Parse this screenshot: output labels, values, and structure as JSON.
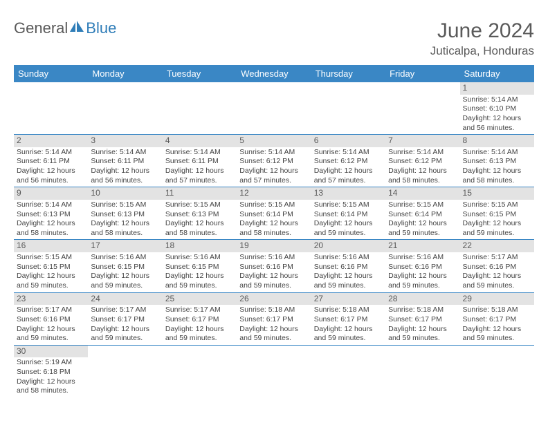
{
  "brand": {
    "part1": "General",
    "part2": "Blue"
  },
  "title": "June 2024",
  "location": "Juticalpa, Honduras",
  "colors": {
    "header_bg": "#3a87c5",
    "header_text": "#ffffff",
    "daynum_bg": "#e3e3e3",
    "row_border": "#3a87c5",
    "brand_gray": "#5a5a5a",
    "brand_blue": "#2f7db8"
  },
  "weekdays": [
    "Sunday",
    "Monday",
    "Tuesday",
    "Wednesday",
    "Thursday",
    "Friday",
    "Saturday"
  ],
  "days": [
    {
      "n": 1,
      "sr": "5:14 AM",
      "ss": "6:10 PM",
      "dl": "12 hours and 56 minutes."
    },
    {
      "n": 2,
      "sr": "5:14 AM",
      "ss": "6:11 PM",
      "dl": "12 hours and 56 minutes."
    },
    {
      "n": 3,
      "sr": "5:14 AM",
      "ss": "6:11 PM",
      "dl": "12 hours and 56 minutes."
    },
    {
      "n": 4,
      "sr": "5:14 AM",
      "ss": "6:11 PM",
      "dl": "12 hours and 57 minutes."
    },
    {
      "n": 5,
      "sr": "5:14 AM",
      "ss": "6:12 PM",
      "dl": "12 hours and 57 minutes."
    },
    {
      "n": 6,
      "sr": "5:14 AM",
      "ss": "6:12 PM",
      "dl": "12 hours and 57 minutes."
    },
    {
      "n": 7,
      "sr": "5:14 AM",
      "ss": "6:12 PM",
      "dl": "12 hours and 58 minutes."
    },
    {
      "n": 8,
      "sr": "5:14 AM",
      "ss": "6:13 PM",
      "dl": "12 hours and 58 minutes."
    },
    {
      "n": 9,
      "sr": "5:14 AM",
      "ss": "6:13 PM",
      "dl": "12 hours and 58 minutes."
    },
    {
      "n": 10,
      "sr": "5:15 AM",
      "ss": "6:13 PM",
      "dl": "12 hours and 58 minutes."
    },
    {
      "n": 11,
      "sr": "5:15 AM",
      "ss": "6:13 PM",
      "dl": "12 hours and 58 minutes."
    },
    {
      "n": 12,
      "sr": "5:15 AM",
      "ss": "6:14 PM",
      "dl": "12 hours and 58 minutes."
    },
    {
      "n": 13,
      "sr": "5:15 AM",
      "ss": "6:14 PM",
      "dl": "12 hours and 59 minutes."
    },
    {
      "n": 14,
      "sr": "5:15 AM",
      "ss": "6:14 PM",
      "dl": "12 hours and 59 minutes."
    },
    {
      "n": 15,
      "sr": "5:15 AM",
      "ss": "6:15 PM",
      "dl": "12 hours and 59 minutes."
    },
    {
      "n": 16,
      "sr": "5:15 AM",
      "ss": "6:15 PM",
      "dl": "12 hours and 59 minutes."
    },
    {
      "n": 17,
      "sr": "5:16 AM",
      "ss": "6:15 PM",
      "dl": "12 hours and 59 minutes."
    },
    {
      "n": 18,
      "sr": "5:16 AM",
      "ss": "6:15 PM",
      "dl": "12 hours and 59 minutes."
    },
    {
      "n": 19,
      "sr": "5:16 AM",
      "ss": "6:16 PM",
      "dl": "12 hours and 59 minutes."
    },
    {
      "n": 20,
      "sr": "5:16 AM",
      "ss": "6:16 PM",
      "dl": "12 hours and 59 minutes."
    },
    {
      "n": 21,
      "sr": "5:16 AM",
      "ss": "6:16 PM",
      "dl": "12 hours and 59 minutes."
    },
    {
      "n": 22,
      "sr": "5:17 AM",
      "ss": "6:16 PM",
      "dl": "12 hours and 59 minutes."
    },
    {
      "n": 23,
      "sr": "5:17 AM",
      "ss": "6:16 PM",
      "dl": "12 hours and 59 minutes."
    },
    {
      "n": 24,
      "sr": "5:17 AM",
      "ss": "6:17 PM",
      "dl": "12 hours and 59 minutes."
    },
    {
      "n": 25,
      "sr": "5:17 AM",
      "ss": "6:17 PM",
      "dl": "12 hours and 59 minutes."
    },
    {
      "n": 26,
      "sr": "5:18 AM",
      "ss": "6:17 PM",
      "dl": "12 hours and 59 minutes."
    },
    {
      "n": 27,
      "sr": "5:18 AM",
      "ss": "6:17 PM",
      "dl": "12 hours and 59 minutes."
    },
    {
      "n": 28,
      "sr": "5:18 AM",
      "ss": "6:17 PM",
      "dl": "12 hours and 59 minutes."
    },
    {
      "n": 29,
      "sr": "5:18 AM",
      "ss": "6:17 PM",
      "dl": "12 hours and 59 minutes."
    },
    {
      "n": 30,
      "sr": "5:19 AM",
      "ss": "6:18 PM",
      "dl": "12 hours and 58 minutes."
    }
  ],
  "labels": {
    "sunrise": "Sunrise:",
    "sunset": "Sunset:",
    "daylight": "Daylight:"
  },
  "first_weekday_index": 6
}
